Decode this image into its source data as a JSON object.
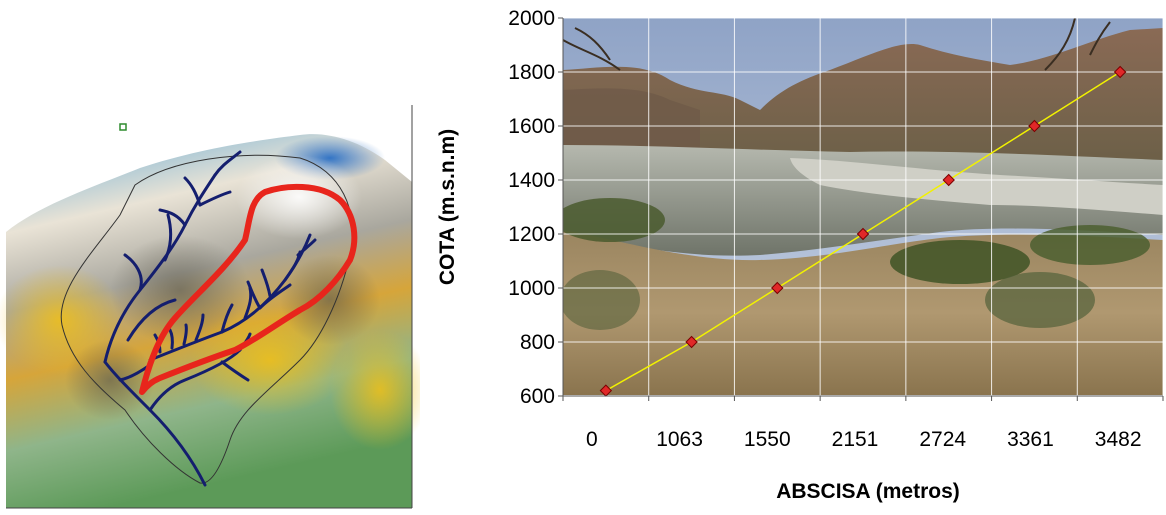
{
  "figure": {
    "left_panel": {
      "kind": "3d-terrain-watershed-map"
    },
    "colors": {
      "profile_line": "#f2f200",
      "marker_fill": "#e02828",
      "marker_stroke": "#7a0000",
      "watershed_outline": "#e8251c",
      "drainage": "#141e6e",
      "gridline": "#ffffff"
    }
  },
  "chart_data": {
    "type": "line",
    "title": "",
    "xlabel": "ABSCISA (metros)",
    "ylabel": "COTA (m.s.n.m)",
    "x_scale": "categorical",
    "categories": [
      "0",
      "1063",
      "1550",
      "2151",
      "2724",
      "3361",
      "3482"
    ],
    "ylim": [
      600,
      2000
    ],
    "yticks": [
      600,
      800,
      1000,
      1200,
      1400,
      1600,
      1800,
      2000
    ],
    "grid": true,
    "background": "photo of a river valley with mountains",
    "series": [
      {
        "values": [
          620,
          800,
          1000,
          1200,
          1400,
          1600,
          1800
        ]
      }
    ]
  }
}
